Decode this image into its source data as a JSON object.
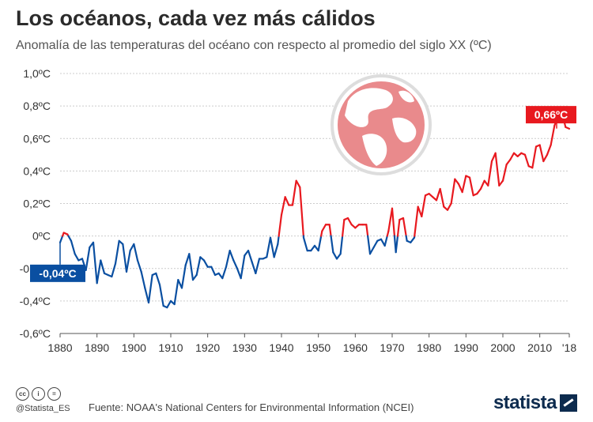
{
  "header": {
    "title": "Los océanos, cada vez más cálidos",
    "subtitle": "Anomalía de las temperaturas del océano con respecto al promedio del siglo XX (ºC)"
  },
  "footer": {
    "license_icons": [
      "cc-icon",
      "by-icon",
      "nd-icon"
    ],
    "handle": "@Statista_ES",
    "source": "Fuente: NOAA's National Centers for Environmental Information (NCEI)",
    "brand": "statista"
  },
  "colors": {
    "negative": "#0a4fa1",
    "positive": "#e8191f",
    "grid": "#cccccc",
    "globe": "#e98a8c"
  },
  "chart_data": {
    "type": "line",
    "title": "Los océanos, cada vez más cálidos",
    "subtitle": "Anomalía de las temperaturas del océano con respecto al promedio del siglo XX (ºC)",
    "xlabel": "",
    "ylabel": "",
    "xlim": [
      1880,
      2018
    ],
    "ylim": [
      -0.6,
      1.0
    ],
    "grid": true,
    "y_ticks": [
      "1,0ºC",
      "0,8ºC",
      "0,6ºC",
      "0,4ºC",
      "0,2ºC",
      "0ºC",
      "-0,2ºC",
      "-0,4ºC",
      "-0,6ºC"
    ],
    "x_ticks": [
      "1880",
      "1890",
      "1900",
      "1910",
      "1920",
      "1930",
      "1940",
      "1950",
      "1960",
      "1970",
      "1980",
      "1990",
      "2000",
      "2010",
      "'18"
    ],
    "annotations": [
      {
        "text": "-0,04ºC",
        "x": 1880,
        "y": -0.04
      },
      {
        "text": "0,66ºC",
        "x": 2018,
        "y": 0.66
      }
    ],
    "series": [
      {
        "x": [
          1880,
          1881,
          1882,
          1883,
          1884,
          1885,
          1886,
          1887,
          1888,
          1889,
          1890,
          1891,
          1892,
          1893,
          1894,
          1895,
          1896,
          1897,
          1898,
          1899,
          1900,
          1901,
          1902,
          1903,
          1904,
          1905,
          1906,
          1907,
          1908,
          1909,
          1910,
          1911,
          1912,
          1913,
          1914,
          1915,
          1916,
          1917,
          1918,
          1919,
          1920,
          1921,
          1922,
          1923,
          1924,
          1925,
          1926,
          1927,
          1928,
          1929,
          1930,
          1931,
          1932,
          1933,
          1934,
          1935,
          1936,
          1937,
          1938,
          1939,
          1940,
          1941,
          1942,
          1943,
          1944,
          1945,
          1946,
          1947,
          1948,
          1949,
          1950,
          1951,
          1952,
          1953,
          1954,
          1955,
          1956,
          1957,
          1958,
          1959,
          1960,
          1961,
          1962,
          1963,
          1964,
          1965,
          1966,
          1967,
          1968,
          1969,
          1970,
          1971,
          1972,
          1973,
          1974,
          1975,
          1976,
          1977,
          1978,
          1979,
          1980,
          1981,
          1982,
          1983,
          1984,
          1985,
          1986,
          1987,
          1988,
          1989,
          1990,
          1991,
          1992,
          1993,
          1994,
          1995,
          1996,
          1997,
          1998,
          1999,
          2000,
          2001,
          2002,
          2003,
          2004,
          2005,
          2006,
          2007,
          2008,
          2009,
          2010,
          2011,
          2012,
          2013,
          2014,
          2015,
          2016,
          2017,
          2018
        ],
        "values": [
          -0.04,
          0.02,
          0.01,
          -0.03,
          -0.11,
          -0.15,
          -0.14,
          -0.21,
          -0.07,
          -0.04,
          -0.29,
          -0.15,
          -0.23,
          -0.24,
          -0.25,
          -0.17,
          -0.03,
          -0.05,
          -0.22,
          -0.09,
          -0.05,
          -0.15,
          -0.22,
          -0.32,
          -0.41,
          -0.24,
          -0.23,
          -0.3,
          -0.43,
          -0.44,
          -0.4,
          -0.42,
          -0.27,
          -0.32,
          -0.18,
          -0.11,
          -0.27,
          -0.24,
          -0.13,
          -0.15,
          -0.19,
          -0.19,
          -0.24,
          -0.23,
          -0.26,
          -0.19,
          -0.09,
          -0.15,
          -0.2,
          -0.26,
          -0.12,
          -0.09,
          -0.16,
          -0.23,
          -0.14,
          -0.14,
          -0.13,
          -0.01,
          -0.13,
          -0.05,
          0.13,
          0.24,
          0.19,
          0.19,
          0.34,
          0.3,
          -0.01,
          -0.09,
          -0.09,
          -0.06,
          -0.09,
          0.03,
          0.07,
          0.07,
          -0.1,
          -0.14,
          -0.11,
          0.1,
          0.11,
          0.07,
          0.05,
          0.07,
          0.07,
          0.07,
          -0.11,
          -0.07,
          -0.03,
          -0.02,
          -0.06,
          0.03,
          0.17,
          -0.1,
          0.1,
          0.11,
          -0.03,
          -0.04,
          -0.01,
          0.18,
          0.12,
          0.25,
          0.26,
          0.24,
          0.22,
          0.29,
          0.18,
          0.16,
          0.2,
          0.35,
          0.32,
          0.27,
          0.37,
          0.36,
          0.25,
          0.26,
          0.29,
          0.34,
          0.31,
          0.46,
          0.51,
          0.31,
          0.34,
          0.44,
          0.47,
          0.51,
          0.49,
          0.51,
          0.5,
          0.43,
          0.42,
          0.55,
          0.56,
          0.46,
          0.5,
          0.56,
          0.68,
          0.74,
          0.76,
          0.67,
          0.66
        ]
      }
    ]
  }
}
